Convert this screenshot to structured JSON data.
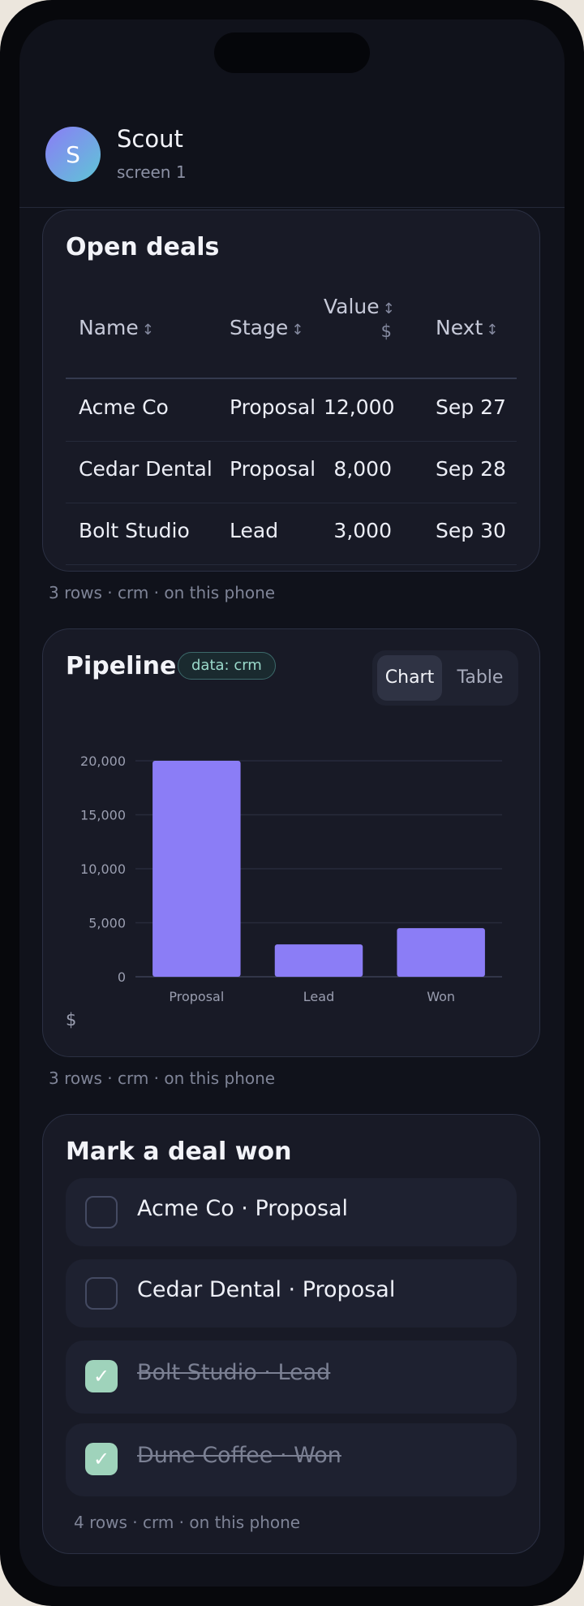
{
  "app": {
    "avatar_letter": "S",
    "title": "Scout",
    "subtitle": "screen 1"
  },
  "deals": {
    "title": "Open deals",
    "columns": [
      {
        "label": "Name",
        "sort_icon": "↕"
      },
      {
        "label": "Stage",
        "sort_icon": "↕"
      },
      {
        "label": "Value",
        "sort_icon": "↕",
        "unit": "$"
      },
      {
        "label": "Next",
        "sort_icon": "↕"
      }
    ],
    "rows": [
      {
        "name": "Acme Co",
        "stage": "Proposal",
        "value": "12,000",
        "next": "Sep 27"
      },
      {
        "name": "Cedar Dental",
        "stage": "Proposal",
        "value": "8,000",
        "next": "Sep 28"
      },
      {
        "name": "Bolt Studio",
        "stage": "Lead",
        "value": "3,000",
        "next": "Sep 30"
      }
    ],
    "footnote": "3 rows · crm · on this phone"
  },
  "pipeline": {
    "title": "Pipeline",
    "badge": "data: crm",
    "toggle": {
      "chart": "Chart",
      "table": "Table",
      "selected": "Chart"
    },
    "footnote": "3 rows · crm · on this phone"
  },
  "chart_data": {
    "type": "bar",
    "categories": [
      "Proposal",
      "Lead",
      "Won"
    ],
    "values": [
      20000,
      3000,
      4500
    ],
    "ylim": [
      0,
      20000
    ],
    "yticks": [
      0,
      5000,
      10000,
      15000,
      20000
    ],
    "ytick_labels": [
      "0",
      "5,000",
      "10,000",
      "15,000",
      "20,000"
    ],
    "ylabel": "$",
    "xlabel": "",
    "grid": true,
    "bar_color": "#8b7df6"
  },
  "tasks": {
    "title": "Mark a deal won",
    "items": [
      {
        "label": "Acme Co · Proposal",
        "done": false
      },
      {
        "label": "Cedar Dental · Proposal",
        "done": false
      },
      {
        "label": "Bolt Studio · Lead",
        "done": true
      },
      {
        "label": "Dune Coffee · Won",
        "done": true
      }
    ],
    "check_glyph": "✓",
    "footnote": "4 rows · crm · on this phone"
  },
  "colors": {
    "accent": "#8b7df6",
    "done": "#9fd3bb",
    "badge": "#9ad9cb"
  }
}
